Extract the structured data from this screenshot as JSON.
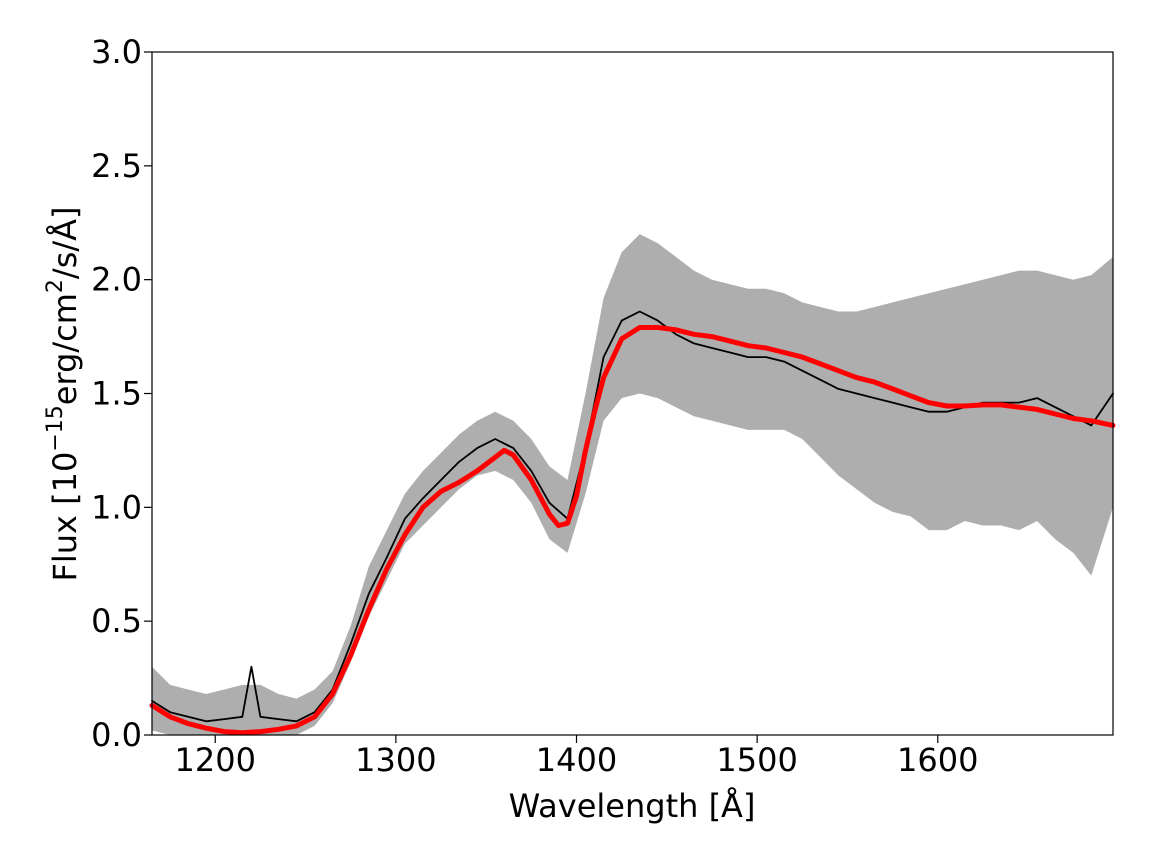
{
  "chart_data": {
    "type": "line",
    "title": "",
    "xlabel": "Wavelength [Å]",
    "ylabel": {
      "prefix": "Flux [10",
      "exp1": "−15",
      "mid": "erg/cm",
      "exp2": "2",
      "suffix": "/s/Å]"
    },
    "xlim": [
      1165,
      1697
    ],
    "ylim": [
      0.0,
      3.0
    ],
    "xticks": [
      1200,
      1300,
      1400,
      1500,
      1600
    ],
    "xtick_labels": [
      "1200",
      "1300",
      "1400",
      "1500",
      "1600"
    ],
    "yticks": [
      0.0,
      0.5,
      1.0,
      1.5,
      2.0,
      2.5,
      3.0
    ],
    "ytick_labels": [
      "0.0",
      "0.5",
      "1.0",
      "1.5",
      "2.0",
      "2.5",
      "3.0"
    ],
    "grid": false,
    "series": [
      {
        "role": "observed-spectrum-uncertainty",
        "color": "#a0a0a0",
        "x": [
          1165,
          1175,
          1185,
          1195,
          1205,
          1215,
          1225,
          1235,
          1245,
          1255,
          1265,
          1275,
          1285,
          1295,
          1305,
          1315,
          1325,
          1335,
          1345,
          1355,
          1365,
          1375,
          1385,
          1395,
          1405,
          1415,
          1425,
          1435,
          1445,
          1455,
          1465,
          1475,
          1485,
          1495,
          1505,
          1515,
          1525,
          1535,
          1545,
          1555,
          1565,
          1575,
          1585,
          1595,
          1605,
          1615,
          1625,
          1635,
          1645,
          1655,
          1665,
          1675,
          1685,
          1697
        ],
        "y_low": [
          0.02,
          0.0,
          0.0,
          0.0,
          0.0,
          0.0,
          0.0,
          0.0,
          0.0,
          0.04,
          0.14,
          0.32,
          0.52,
          0.68,
          0.84,
          0.92,
          1.0,
          1.08,
          1.14,
          1.16,
          1.12,
          1.02,
          0.86,
          0.8,
          1.06,
          1.38,
          1.48,
          1.5,
          1.48,
          1.44,
          1.4,
          1.38,
          1.36,
          1.34,
          1.34,
          1.34,
          1.3,
          1.22,
          1.14,
          1.08,
          1.02,
          0.98,
          0.96,
          0.9,
          0.9,
          0.94,
          0.92,
          0.92,
          0.9,
          0.94,
          0.86,
          0.8,
          0.7,
          1.0
        ],
        "y_high": [
          0.3,
          0.22,
          0.2,
          0.18,
          0.2,
          0.22,
          0.22,
          0.18,
          0.16,
          0.2,
          0.28,
          0.48,
          0.74,
          0.9,
          1.06,
          1.16,
          1.24,
          1.32,
          1.38,
          1.42,
          1.38,
          1.3,
          1.18,
          1.12,
          1.5,
          1.92,
          2.12,
          2.2,
          2.16,
          2.1,
          2.04,
          2.0,
          1.98,
          1.96,
          1.96,
          1.94,
          1.9,
          1.88,
          1.86,
          1.86,
          1.88,
          1.9,
          1.92,
          1.94,
          1.96,
          1.98,
          2.0,
          2.02,
          2.04,
          2.04,
          2.02,
          2.0,
          2.02,
          2.1
        ]
      },
      {
        "role": "observed-spectrum",
        "color": "#000000",
        "x": [
          1165,
          1175,
          1185,
          1195,
          1205,
          1215,
          1220,
          1225,
          1235,
          1245,
          1255,
          1265,
          1275,
          1285,
          1295,
          1305,
          1315,
          1325,
          1335,
          1345,
          1355,
          1365,
          1375,
          1385,
          1395,
          1405,
          1415,
          1425,
          1435,
          1445,
          1455,
          1465,
          1475,
          1485,
          1495,
          1505,
          1515,
          1525,
          1535,
          1545,
          1555,
          1565,
          1575,
          1585,
          1595,
          1605,
          1615,
          1625,
          1635,
          1645,
          1655,
          1665,
          1675,
          1685,
          1697
        ],
        "y": [
          0.15,
          0.1,
          0.08,
          0.06,
          0.07,
          0.08,
          0.3,
          0.08,
          0.07,
          0.06,
          0.1,
          0.2,
          0.4,
          0.62,
          0.78,
          0.95,
          1.04,
          1.12,
          1.2,
          1.26,
          1.3,
          1.26,
          1.16,
          1.02,
          0.95,
          1.26,
          1.66,
          1.82,
          1.86,
          1.82,
          1.76,
          1.72,
          1.7,
          1.68,
          1.66,
          1.66,
          1.64,
          1.6,
          1.56,
          1.52,
          1.5,
          1.48,
          1.46,
          1.44,
          1.42,
          1.42,
          1.44,
          1.46,
          1.46,
          1.46,
          1.48,
          1.44,
          1.4,
          1.36,
          1.5
        ]
      },
      {
        "role": "model-fit",
        "color": "#ff0000",
        "x": [
          1165,
          1175,
          1185,
          1195,
          1205,
          1215,
          1225,
          1235,
          1245,
          1255,
          1265,
          1275,
          1285,
          1295,
          1305,
          1315,
          1325,
          1335,
          1345,
          1355,
          1360,
          1365,
          1375,
          1385,
          1390,
          1395,
          1400,
          1405,
          1410,
          1415,
          1425,
          1435,
          1445,
          1455,
          1465,
          1475,
          1485,
          1495,
          1505,
          1515,
          1525,
          1535,
          1545,
          1555,
          1565,
          1575,
          1585,
          1595,
          1605,
          1615,
          1625,
          1635,
          1645,
          1655,
          1665,
          1675,
          1685,
          1697
        ],
        "y": [
          0.13,
          0.08,
          0.05,
          0.03,
          0.015,
          0.01,
          0.015,
          0.025,
          0.04,
          0.08,
          0.18,
          0.35,
          0.55,
          0.73,
          0.88,
          1.0,
          1.07,
          1.11,
          1.16,
          1.22,
          1.25,
          1.23,
          1.12,
          0.97,
          0.92,
          0.93,
          1.05,
          1.25,
          1.42,
          1.57,
          1.74,
          1.79,
          1.79,
          1.78,
          1.76,
          1.75,
          1.73,
          1.71,
          1.7,
          1.68,
          1.66,
          1.63,
          1.6,
          1.57,
          1.55,
          1.52,
          1.49,
          1.46,
          1.445,
          1.445,
          1.45,
          1.45,
          1.44,
          1.43,
          1.41,
          1.39,
          1.38,
          1.36
        ]
      }
    ]
  }
}
